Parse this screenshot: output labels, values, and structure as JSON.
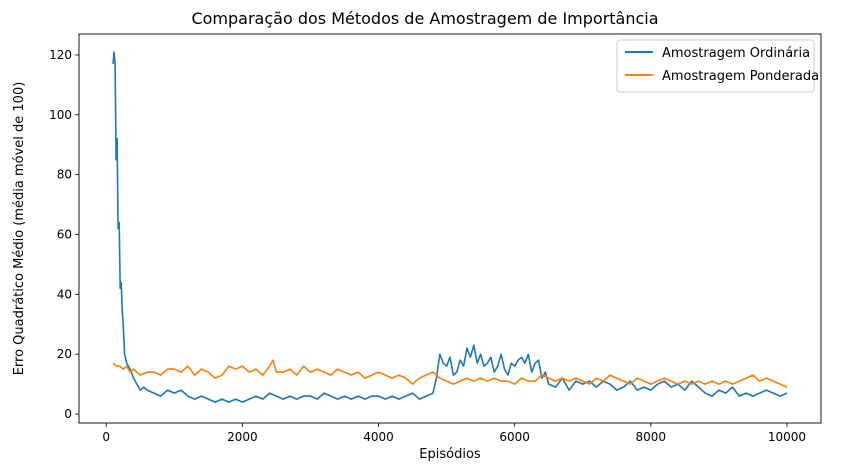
{
  "chart_data": {
    "type": "line",
    "title": "Comparação dos Métodos de Amostragem de Importância",
    "xlabel": "Episódios",
    "ylabel": "Erro Quadrático Médio (média móvel de 100)",
    "xlim": [
      -400,
      10500
    ],
    "ylim": [
      -3,
      127
    ],
    "xticks": [
      0,
      2000,
      4000,
      6000,
      8000,
      10000
    ],
    "yticks": [
      0,
      20,
      40,
      60,
      80,
      100,
      120
    ],
    "grid": false,
    "legend_position": "top-right",
    "series": [
      {
        "name": "Amostragem Ordinária",
        "color": "#1f77b4",
        "x": [
          100,
          115,
          130,
          145,
          160,
          175,
          190,
          205,
          220,
          235,
          250,
          270,
          300,
          350,
          400,
          450,
          500,
          550,
          600,
          700,
          800,
          900,
          1000,
          1100,
          1200,
          1300,
          1400,
          1500,
          1600,
          1700,
          1800,
          1900,
          2000,
          2100,
          2200,
          2300,
          2400,
          2500,
          2600,
          2700,
          2800,
          2900,
          3000,
          3100,
          3200,
          3300,
          3400,
          3500,
          3600,
          3700,
          3800,
          3900,
          4000,
          4100,
          4200,
          4300,
          4400,
          4500,
          4600,
          4700,
          4800,
          4850,
          4900,
          4950,
          5000,
          5050,
          5100,
          5150,
          5200,
          5250,
          5300,
          5350,
          5400,
          5450,
          5500,
          5550,
          5600,
          5650,
          5700,
          5750,
          5800,
          5850,
          5900,
          5950,
          6000,
          6050,
          6100,
          6150,
          6200,
          6250,
          6300,
          6350,
          6400,
          6450,
          6500,
          6600,
          6700,
          6800,
          6900,
          7000,
          7100,
          7200,
          7300,
          7400,
          7500,
          7600,
          7700,
          7800,
          7900,
          8000,
          8100,
          8200,
          8300,
          8400,
          8500,
          8600,
          8700,
          8800,
          8900,
          9000,
          9100,
          9200,
          9300,
          9400,
          9500,
          9600,
          9700,
          9800,
          9900,
          10000
        ],
        "y": [
          117,
          121,
          117,
          85,
          92,
          62,
          64,
          42,
          44,
          35,
          30,
          20,
          17,
          15,
          12,
          10,
          8,
          9,
          8,
          7,
          6,
          8,
          7,
          8,
          6,
          5,
          6,
          5,
          4,
          5,
          4,
          5,
          4,
          5,
          6,
          5,
          7,
          6,
          5,
          6,
          5,
          6,
          6,
          5,
          7,
          6,
          5,
          6,
          5,
          6,
          5,
          6,
          6,
          5,
          6,
          5,
          6,
          7,
          5,
          6,
          7,
          12,
          20,
          17,
          16,
          19,
          13,
          14,
          18,
          16,
          22,
          19,
          23,
          17,
          20,
          16,
          17,
          19,
          14,
          16,
          20,
          15,
          13,
          17,
          16,
          18,
          19,
          17,
          20,
          14,
          17,
          18,
          12,
          14,
          10,
          9,
          12,
          8,
          11,
          10,
          11,
          9,
          11,
          10,
          8,
          9,
          11,
          8,
          9,
          8,
          10,
          11,
          9,
          10,
          8,
          11,
          9,
          7,
          6,
          8,
          7,
          9,
          6,
          7,
          6,
          7,
          8,
          7,
          6,
          7
        ]
      },
      {
        "name": "Amostragem Ponderada",
        "color": "#ff7f0e",
        "x": [
          100,
          150,
          200,
          250,
          300,
          350,
          400,
          500,
          600,
          700,
          800,
          900,
          1000,
          1100,
          1200,
          1300,
          1400,
          1500,
          1600,
          1700,
          1800,
          1900,
          2000,
          2100,
          2200,
          2300,
          2400,
          2450,
          2500,
          2600,
          2700,
          2800,
          2900,
          3000,
          3100,
          3200,
          3300,
          3400,
          3500,
          3600,
          3700,
          3800,
          3900,
          4000,
          4100,
          4200,
          4300,
          4400,
          4500,
          4600,
          4700,
          4800,
          4900,
          5000,
          5100,
          5200,
          5300,
          5400,
          5500,
          5600,
          5700,
          5800,
          5900,
          6000,
          6100,
          6200,
          6300,
          6400,
          6500,
          6600,
          6700,
          6800,
          6900,
          7000,
          7100,
          7200,
          7300,
          7400,
          7500,
          7600,
          7700,
          7800,
          7900,
          8000,
          8100,
          8200,
          8300,
          8400,
          8500,
          8600,
          8700,
          8800,
          8900,
          9000,
          9100,
          9200,
          9300,
          9400,
          9500,
          9600,
          9700,
          9800,
          9900,
          10000
        ],
        "y": [
          17,
          16,
          16,
          15,
          16,
          14,
          15,
          13,
          14,
          14,
          13,
          15,
          15,
          14,
          16,
          13,
          15,
          14,
          12,
          13,
          16,
          15,
          16,
          14,
          15,
          13,
          16,
          18,
          14,
          14,
          15,
          13,
          16,
          14,
          15,
          14,
          13,
          15,
          14,
          13,
          14,
          12,
          13,
          14,
          13,
          12,
          13,
          12,
          10,
          12,
          13,
          14,
          12,
          11,
          10,
          11,
          12,
          11,
          12,
          11,
          12,
          11,
          11,
          10,
          12,
          11,
          11,
          13,
          12,
          11,
          12,
          11,
          12,
          11,
          10,
          12,
          11,
          13,
          12,
          11,
          10,
          12,
          11,
          10,
          11,
          12,
          11,
          10,
          11,
          10,
          11,
          10,
          11,
          10,
          11,
          10,
          11,
          12,
          13,
          11,
          12,
          11,
          10,
          9
        ]
      }
    ]
  }
}
